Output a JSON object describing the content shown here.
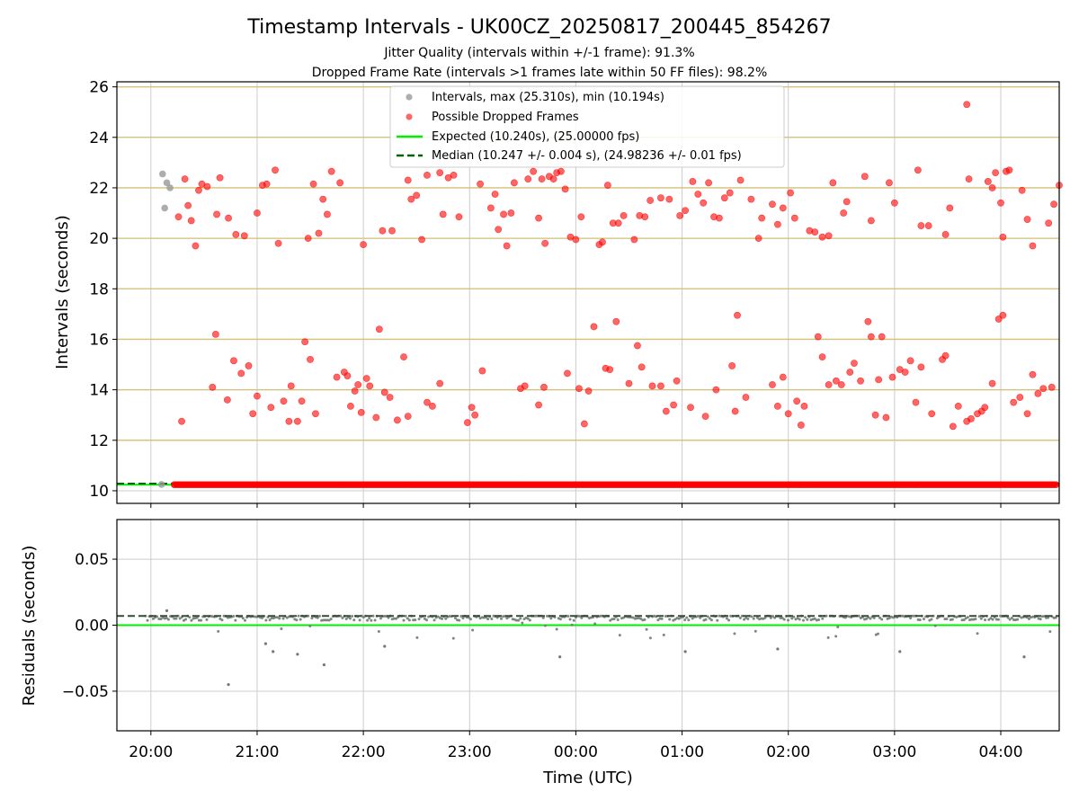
{
  "chart_data": [
    {
      "type": "scatter",
      "title": "Timestamp Intervals - UK00CZ_20250817_200445_854267",
      "subtitle_1": "Jitter Quality (intervals within +/-1 frame): 91.3%",
      "subtitle_2": "Dropped Frame Rate (intervals >1 frames late within 50 FF files): 98.2%",
      "ylabel": "Intervals (seconds)",
      "ylim": [
        9.5,
        26.2
      ],
      "yticks": [
        "10",
        "12",
        "14",
        "16",
        "18",
        "20",
        "22",
        "24",
        "26"
      ],
      "horizontal_reference_lines": [
        12,
        14,
        16,
        18,
        20,
        22,
        24,
        26
      ],
      "legend": {
        "position": "top-center",
        "intervals": "Intervals, max (25.310s), min (10.194s)",
        "dropped": "Possible Dropped Frames",
        "expected": "Expected (10.240s), (25.00000 fps)",
        "median": "Median (10.247 +/- 0.004 s), (24.98236 +/- 0.01 fps)"
      },
      "expected_interval": 10.24,
      "median_interval": 10.247,
      "colors": {
        "intervals": "#999999",
        "dropped": "#ff0000",
        "expected": "#00ee00",
        "median": "#006400",
        "reference_lines": "#d4c079"
      },
      "series_intervals_normal": {
        "note_x_unit": "hours after 20:00 UTC",
        "points": [
          [
            0.11,
            22.55
          ],
          [
            0.15,
            22.2
          ],
          [
            0.18,
            22.0
          ],
          [
            0.13,
            21.2
          ],
          [
            0.1,
            10.25
          ]
        ]
      },
      "series_dense_band": {
        "y": 10.24,
        "x_range": [
          0.22,
          8.52
        ]
      },
      "series_dropped": {
        "points_upper": [
          [
            0.26,
            20.85
          ],
          [
            0.32,
            22.35
          ],
          [
            0.35,
            21.3
          ],
          [
            0.38,
            20.7
          ],
          [
            0.42,
            19.7
          ],
          [
            0.45,
            21.9
          ],
          [
            0.48,
            22.15
          ],
          [
            0.53,
            22.05
          ],
          [
            0.62,
            20.95
          ],
          [
            0.65,
            22.4
          ],
          [
            0.73,
            20.8
          ],
          [
            0.8,
            20.15
          ],
          [
            0.88,
            20.1
          ],
          [
            1.0,
            21.0
          ],
          [
            1.05,
            22.1
          ],
          [
            1.09,
            22.15
          ],
          [
            1.17,
            22.7
          ],
          [
            1.2,
            19.8
          ],
          [
            1.48,
            20.0
          ],
          [
            1.53,
            22.15
          ],
          [
            1.58,
            20.2
          ],
          [
            1.62,
            21.55
          ],
          [
            1.66,
            20.95
          ],
          [
            1.7,
            22.65
          ],
          [
            1.78,
            22.2
          ],
          [
            2.0,
            19.75
          ],
          [
            2.18,
            20.3
          ],
          [
            2.27,
            20.3
          ],
          [
            2.42,
            22.3
          ],
          [
            2.45,
            21.55
          ],
          [
            2.5,
            21.7
          ],
          [
            2.55,
            19.95
          ],
          [
            2.6,
            22.5
          ],
          [
            2.72,
            22.6
          ],
          [
            2.75,
            20.95
          ],
          [
            2.8,
            22.4
          ],
          [
            2.85,
            22.5
          ],
          [
            2.9,
            20.85
          ],
          [
            3.1,
            22.15
          ],
          [
            3.2,
            21.2
          ],
          [
            3.24,
            21.75
          ],
          [
            3.27,
            20.35
          ],
          [
            3.32,
            20.95
          ],
          [
            3.35,
            19.7
          ],
          [
            3.39,
            21.0
          ],
          [
            3.42,
            22.2
          ],
          [
            3.55,
            22.35
          ],
          [
            3.6,
            22.65
          ],
          [
            3.65,
            20.8
          ],
          [
            3.68,
            22.35
          ],
          [
            3.71,
            19.8
          ],
          [
            3.75,
            22.45
          ],
          [
            3.79,
            22.35
          ],
          [
            3.82,
            22.6
          ],
          [
            3.86,
            22.65
          ],
          [
            3.9,
            21.95
          ],
          [
            3.95,
            20.05
          ],
          [
            4.0,
            19.95
          ],
          [
            4.05,
            20.85
          ],
          [
            4.22,
            19.75
          ],
          [
            4.25,
            19.85
          ],
          [
            4.3,
            22.1
          ],
          [
            4.35,
            20.6
          ],
          [
            4.4,
            20.6
          ],
          [
            4.45,
            20.9
          ],
          [
            4.55,
            19.95
          ],
          [
            4.6,
            20.9
          ],
          [
            4.65,
            20.85
          ],
          [
            4.7,
            21.5
          ],
          [
            4.8,
            21.6
          ],
          [
            4.88,
            21.55
          ],
          [
            4.98,
            20.9
          ],
          [
            5.03,
            21.1
          ],
          [
            5.1,
            22.25
          ],
          [
            5.15,
            21.75
          ],
          [
            5.2,
            21.4
          ],
          [
            5.25,
            22.2
          ],
          [
            5.3,
            20.85
          ],
          [
            5.35,
            20.8
          ],
          [
            5.4,
            21.6
          ],
          [
            5.45,
            21.8
          ],
          [
            5.55,
            22.3
          ],
          [
            5.65,
            21.55
          ],
          [
            5.72,
            20.0
          ],
          [
            5.75,
            20.8
          ],
          [
            5.85,
            21.35
          ],
          [
            5.9,
            20.55
          ],
          [
            5.95,
            21.2
          ],
          [
            6.02,
            21.8
          ],
          [
            6.06,
            20.8
          ],
          [
            6.2,
            20.3
          ],
          [
            6.25,
            20.25
          ],
          [
            6.32,
            20.05
          ],
          [
            6.38,
            20.1
          ],
          [
            6.42,
            22.2
          ],
          [
            6.52,
            21.0
          ],
          [
            6.55,
            21.45
          ],
          [
            6.72,
            22.45
          ],
          [
            6.78,
            20.7
          ],
          [
            6.95,
            22.2
          ],
          [
            7.0,
            21.4
          ],
          [
            7.22,
            22.7
          ],
          [
            7.25,
            20.5
          ],
          [
            7.32,
            20.5
          ],
          [
            7.48,
            20.15
          ],
          [
            7.52,
            21.2
          ],
          [
            7.68,
            25.3
          ],
          [
            7.7,
            22.35
          ],
          [
            7.88,
            22.25
          ],
          [
            7.92,
            22.0
          ],
          [
            7.95,
            22.6
          ],
          [
            8.0,
            21.4
          ],
          [
            8.02,
            20.05
          ],
          [
            8.05,
            22.65
          ],
          [
            8.08,
            22.7
          ],
          [
            8.2,
            21.9
          ],
          [
            8.25,
            20.75
          ],
          [
            8.3,
            19.7
          ],
          [
            8.45,
            20.6
          ],
          [
            8.5,
            21.35
          ],
          [
            8.55,
            22.1
          ]
        ],
        "points_lower": [
          [
            0.29,
            12.75
          ],
          [
            0.58,
            14.1
          ],
          [
            0.61,
            16.2
          ],
          [
            0.72,
            13.6
          ],
          [
            0.78,
            15.15
          ],
          [
            0.85,
            14.65
          ],
          [
            0.92,
            14.95
          ],
          [
            0.96,
            13.05
          ],
          [
            1.0,
            13.75
          ],
          [
            1.13,
            13.3
          ],
          [
            1.25,
            13.55
          ],
          [
            1.3,
            12.75
          ],
          [
            1.32,
            14.15
          ],
          [
            1.38,
            12.75
          ],
          [
            1.42,
            13.55
          ],
          [
            1.45,
            15.9
          ],
          [
            1.5,
            15.2
          ],
          [
            1.55,
            13.05
          ],
          [
            1.75,
            14.5
          ],
          [
            1.82,
            14.7
          ],
          [
            1.85,
            14.55
          ],
          [
            1.88,
            13.35
          ],
          [
            1.92,
            13.95
          ],
          [
            1.95,
            14.2
          ],
          [
            1.98,
            13.1
          ],
          [
            2.03,
            14.45
          ],
          [
            2.06,
            14.15
          ],
          [
            2.12,
            12.9
          ],
          [
            2.15,
            16.4
          ],
          [
            2.2,
            13.9
          ],
          [
            2.25,
            13.7
          ],
          [
            2.32,
            12.8
          ],
          [
            2.38,
            15.3
          ],
          [
            2.42,
            12.95
          ],
          [
            2.6,
            13.5
          ],
          [
            2.65,
            13.35
          ],
          [
            2.72,
            14.25
          ],
          [
            2.98,
            12.7
          ],
          [
            3.02,
            13.3
          ],
          [
            3.05,
            13.0
          ],
          [
            3.12,
            14.75
          ],
          [
            3.48,
            14.05
          ],
          [
            3.52,
            14.15
          ],
          [
            3.65,
            13.4
          ],
          [
            3.7,
            14.1
          ],
          [
            3.92,
            14.65
          ],
          [
            4.03,
            14.05
          ],
          [
            4.08,
            12.65
          ],
          [
            4.12,
            13.95
          ],
          [
            4.17,
            16.5
          ],
          [
            4.28,
            14.85
          ],
          [
            4.32,
            14.8
          ],
          [
            4.38,
            16.7
          ],
          [
            4.5,
            14.25
          ],
          [
            4.58,
            15.75
          ],
          [
            4.62,
            14.9
          ],
          [
            4.72,
            14.15
          ],
          [
            4.8,
            14.15
          ],
          [
            4.85,
            13.15
          ],
          [
            4.92,
            13.4
          ],
          [
            4.95,
            14.35
          ],
          [
            5.08,
            13.3
          ],
          [
            5.22,
            12.95
          ],
          [
            5.32,
            14.0
          ],
          [
            5.47,
            14.95
          ],
          [
            5.5,
            13.15
          ],
          [
            5.52,
            16.95
          ],
          [
            5.6,
            13.7
          ],
          [
            5.85,
            14.2
          ],
          [
            5.9,
            13.35
          ],
          [
            5.95,
            14.5
          ],
          [
            6.0,
            13.05
          ],
          [
            6.08,
            13.55
          ],
          [
            6.12,
            12.6
          ],
          [
            6.15,
            13.35
          ],
          [
            6.28,
            16.1
          ],
          [
            6.32,
            15.3
          ],
          [
            6.38,
            14.2
          ],
          [
            6.45,
            14.35
          ],
          [
            6.5,
            14.2
          ],
          [
            6.58,
            14.7
          ],
          [
            6.62,
            15.05
          ],
          [
            6.68,
            14.35
          ],
          [
            6.75,
            16.7
          ],
          [
            6.78,
            16.1
          ],
          [
            6.82,
            13.0
          ],
          [
            6.85,
            14.4
          ],
          [
            6.88,
            16.1
          ],
          [
            6.92,
            12.9
          ],
          [
            6.98,
            14.5
          ],
          [
            7.05,
            14.8
          ],
          [
            7.1,
            14.7
          ],
          [
            7.15,
            15.15
          ],
          [
            7.2,
            13.5
          ],
          [
            7.25,
            14.9
          ],
          [
            7.35,
            13.05
          ],
          [
            7.45,
            15.2
          ],
          [
            7.48,
            15.35
          ],
          [
            7.55,
            12.55
          ],
          [
            7.6,
            13.35
          ],
          [
            7.68,
            12.75
          ],
          [
            7.72,
            12.85
          ],
          [
            7.78,
            13.05
          ],
          [
            7.82,
            13.15
          ],
          [
            7.85,
            13.3
          ],
          [
            7.92,
            14.25
          ],
          [
            7.98,
            16.8
          ],
          [
            8.02,
            16.95
          ],
          [
            8.12,
            13.5
          ],
          [
            8.18,
            13.7
          ],
          [
            8.25,
            13.05
          ],
          [
            8.3,
            14.6
          ],
          [
            8.35,
            13.85
          ],
          [
            8.4,
            14.05
          ],
          [
            8.48,
            14.1
          ]
        ]
      }
    },
    {
      "type": "scatter",
      "xlabel": "Time (UTC)",
      "ylabel": "Residuals (seconds)",
      "ylim": [
        -0.08,
        0.08
      ],
      "yticks": [
        "−0.05",
        "0.00",
        "0.05"
      ],
      "xticks": [
        "20:00",
        "21:00",
        "22:00",
        "23:00",
        "00:00",
        "01:00",
        "02:00",
        "03:00",
        "04:00"
      ],
      "xlim_hours_after_2000": [
        -0.32,
        8.55
      ],
      "expected_residual": 0.0,
      "median_residual": 0.007,
      "colors": {
        "points": "#777777",
        "zero": "#00ee00",
        "median": "#2f4f2f"
      },
      "outliers": [
        [
          0.73,
          -0.045
        ],
        [
          1.63,
          -0.03
        ],
        [
          1.15,
          -0.02
        ],
        [
          1.38,
          -0.022
        ],
        [
          1.08,
          -0.014
        ],
        [
          2.2,
          -0.016
        ],
        [
          3.85,
          -0.024
        ],
        [
          5.03,
          -0.02
        ],
        [
          5.9,
          -0.018
        ],
        [
          7.05,
          -0.02
        ],
        [
          8.22,
          -0.024
        ],
        [
          0.15,
          0.011
        ]
      ]
    }
  ]
}
